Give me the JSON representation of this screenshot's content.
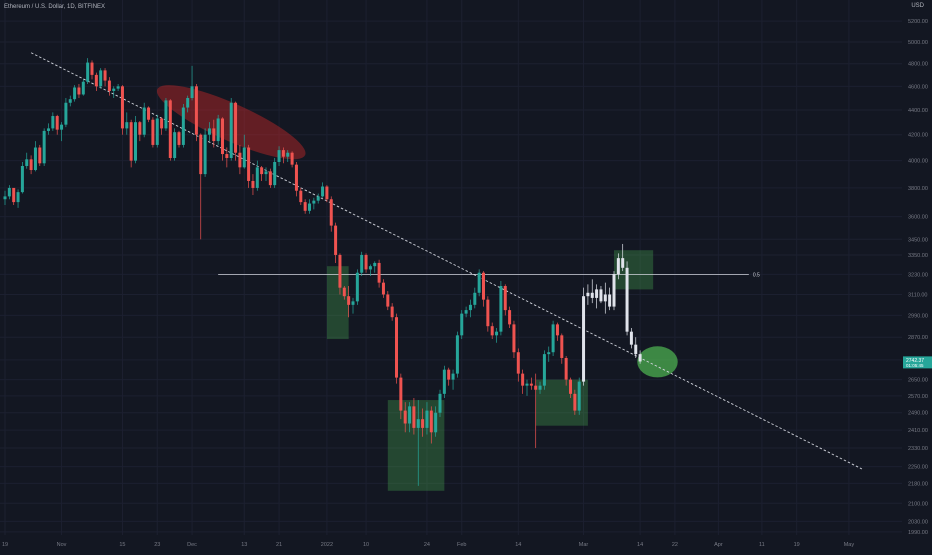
{
  "header": {
    "title": "Ethereum / U.S. Dollar, 1D, BITFINEX",
    "currency": "USD"
  },
  "colors": {
    "background": "#131722",
    "bull": "#26a69a",
    "bear": "#ef5350",
    "white_candle": "#e0e3eb",
    "axis_text": "#787b86",
    "grid": "#1c2030",
    "trendline": "#d1d4dc",
    "level_line": "#d1d4dc",
    "zone_green": "#4caf50",
    "zone_red": "#c62828"
  },
  "chart_data": {
    "type": "candlestick",
    "symbol": "Ethereum / U.S. Dollar",
    "interval": "1D",
    "exchange": "BITFINEX",
    "y_axis": {
      "scale": "log",
      "ticks": [
        "5200.00",
        "5000.00",
        "4800.00",
        "4600.00",
        "4400.00",
        "4200.00",
        "4000.00",
        "3800.00",
        "3600.00",
        "3450.00",
        "3350.00",
        "3230.00",
        "3110.00",
        "2990.00",
        "2870.00",
        "2750.00",
        "2650.00",
        "2570.00",
        "2490.00",
        "2410.00",
        "2330.00",
        "2250.00",
        "2180.00",
        "2100.00",
        "2030.00",
        "1990.00"
      ],
      "tick_values": [
        5200,
        5000,
        4800,
        4600,
        4400,
        4200,
        4000,
        3800,
        3600,
        3450,
        3350,
        3230,
        3110,
        2990,
        2870,
        2750,
        2650,
        2570,
        2490,
        2410,
        2330,
        2250,
        2180,
        2100,
        2030,
        1990
      ]
    },
    "x_axis": {
      "ticks": [
        {
          "label": "19",
          "day": 0
        },
        {
          "label": "Nov",
          "day": 13
        },
        {
          "label": "15",
          "day": 27
        },
        {
          "label": "23",
          "day": 35
        },
        {
          "label": "Dec",
          "day": 43
        },
        {
          "label": "13",
          "day": 55
        },
        {
          "label": "21",
          "day": 63
        },
        {
          "label": "2022",
          "day": 74
        },
        {
          "label": "10",
          "day": 83
        },
        {
          "label": "24",
          "day": 97
        },
        {
          "label": "Feb",
          "day": 105
        },
        {
          "label": "14",
          "day": 118
        },
        {
          "label": "Mar",
          "day": 133
        },
        {
          "label": "14",
          "day": 146
        },
        {
          "label": "22",
          "day": 154
        },
        {
          "label": "Apr",
          "day": 164
        },
        {
          "label": "11",
          "day": 174
        },
        {
          "label": "19",
          "day": 182
        },
        {
          "label": "May",
          "day": 194
        }
      ]
    },
    "price_label": {
      "price": "2742.37",
      "sub": "01:05:45"
    },
    "horizontal_line": {
      "price": 3230,
      "label": "0.5"
    },
    "trendline": {
      "points": [
        {
          "day": 6,
          "price": 4900
        },
        {
          "day": 197,
          "price": 2240
        }
      ]
    },
    "candles": [
      [
        3720,
        3780,
        3680,
        3740,
        "c"
      ],
      [
        3740,
        3820,
        3720,
        3800,
        "c"
      ],
      [
        3800,
        3790,
        3680,
        3700,
        "c"
      ],
      [
        3700,
        3790,
        3660,
        3770,
        "c"
      ],
      [
        3770,
        3990,
        3760,
        3960,
        "c"
      ],
      [
        3960,
        4060,
        3940,
        4010,
        "c"
      ],
      [
        4010,
        4040,
        3900,
        3930,
        "c"
      ],
      [
        3930,
        4150,
        3920,
        4100,
        "c"
      ],
      [
        4100,
        4120,
        3960,
        3980,
        "c"
      ],
      [
        3980,
        4250,
        3960,
        4230,
        "c"
      ],
      [
        4230,
        4290,
        4200,
        4250,
        "c"
      ],
      [
        4250,
        4380,
        4230,
        4350,
        "c"
      ],
      [
        4350,
        4360,
        4200,
        4240,
        "c"
      ],
      [
        4240,
        4300,
        4150,
        4280,
        "c"
      ],
      [
        4280,
        4500,
        4260,
        4460,
        "c"
      ],
      [
        4460,
        4520,
        4430,
        4490,
        "c"
      ],
      [
        4490,
        4610,
        4470,
        4590,
        "c"
      ],
      [
        4590,
        4620,
        4500,
        4530,
        "c"
      ],
      [
        4530,
        4660,
        4520,
        4640,
        "c"
      ],
      [
        4640,
        4850,
        4620,
        4810,
        "c"
      ],
      [
        4810,
        4830,
        4660,
        4700,
        "c"
      ],
      [
        4700,
        4720,
        4560,
        4600,
        "c"
      ],
      [
        4600,
        4760,
        4580,
        4740,
        "c"
      ],
      [
        4740,
        4760,
        4600,
        4650,
        "c"
      ],
      [
        4650,
        4680,
        4520,
        4560,
        "c"
      ],
      [
        4560,
        4600,
        4500,
        4580,
        "c"
      ],
      [
        4580,
        4620,
        4560,
        4600,
        "c"
      ],
      [
        4600,
        4610,
        4200,
        4250,
        "c"
      ],
      [
        4250,
        4380,
        4200,
        4300,
        "c"
      ],
      [
        4300,
        4320,
        3950,
        4000,
        "c"
      ],
      [
        4000,
        4350,
        3980,
        4300,
        "c"
      ],
      [
        4300,
        4310,
        4150,
        4200,
        "c"
      ],
      [
        4200,
        4460,
        4180,
        4420,
        "c"
      ],
      [
        4420,
        4430,
        4300,
        4320,
        "c"
      ],
      [
        4320,
        4340,
        4100,
        4120,
        "c"
      ],
      [
        4120,
        4360,
        4100,
        4330,
        "c"
      ],
      [
        4330,
        4340,
        4200,
        4250,
        "c"
      ],
      [
        4250,
        4500,
        4230,
        4480,
        "c"
      ],
      [
        4480,
        4490,
        4000,
        4020,
        "c"
      ],
      [
        4020,
        4250,
        4000,
        4220,
        "c"
      ],
      [
        4220,
        4230,
        4100,
        4120,
        "c"
      ],
      [
        4120,
        4450,
        4100,
        4420,
        "c"
      ],
      [
        4420,
        4520,
        4380,
        4500,
        "c"
      ],
      [
        4500,
        4780,
        4480,
        4600,
        "c"
      ],
      [
        4600,
        4620,
        4150,
        4200,
        "c"
      ],
      [
        4200,
        4210,
        3450,
        3900,
        "c"
      ],
      [
        3900,
        4250,
        3880,
        4200,
        "c"
      ],
      [
        4200,
        4300,
        4150,
        4250,
        "c"
      ],
      [
        4250,
        4320,
        4100,
        4150,
        "c"
      ],
      [
        4150,
        4360,
        4120,
        4330,
        "c"
      ],
      [
        4330,
        4340,
        4000,
        4050,
        "c"
      ],
      [
        4050,
        4100,
        3950,
        4020,
        "c"
      ],
      [
        4020,
        4500,
        4000,
        4460,
        "c"
      ],
      [
        4460,
        4470,
        4000,
        4060,
        "c"
      ],
      [
        4060,
        4120,
        3900,
        3950,
        "c"
      ],
      [
        3950,
        4200,
        3940,
        4100,
        "c"
      ],
      [
        4100,
        4120,
        3800,
        3850,
        "c"
      ],
      [
        3850,
        3900,
        3750,
        3800,
        "c"
      ],
      [
        3800,
        4000,
        3780,
        3950,
        "c"
      ],
      [
        3950,
        3960,
        3850,
        3900,
        "c"
      ],
      [
        3900,
        3950,
        3850,
        3920,
        "c"
      ],
      [
        3920,
        3940,
        3800,
        3820,
        "c"
      ],
      [
        3820,
        4020,
        3800,
        3990,
        "c"
      ],
      [
        3990,
        4110,
        3960,
        4080,
        "c"
      ],
      [
        4080,
        4100,
        3980,
        4030,
        "c"
      ],
      [
        4030,
        4080,
        3990,
        4060,
        "c"
      ],
      [
        4060,
        4070,
        3950,
        3970,
        "c"
      ],
      [
        3970,
        3990,
        3740,
        3780,
        "c"
      ],
      [
        3780,
        3800,
        3680,
        3700,
        "c"
      ],
      [
        3700,
        3720,
        3620,
        3640,
        "c"
      ],
      [
        3640,
        3720,
        3620,
        3690,
        "c"
      ],
      [
        3690,
        3730,
        3650,
        3710,
        "c"
      ],
      [
        3710,
        3760,
        3690,
        3740,
        "c"
      ],
      [
        3740,
        3840,
        3730,
        3810,
        "c"
      ],
      [
        3810,
        3820,
        3700,
        3720,
        "c"
      ],
      [
        3720,
        3740,
        3500,
        3540,
        "c"
      ],
      [
        3540,
        3560,
        3300,
        3350,
        "c"
      ],
      [
        3350,
        3360,
        3110,
        3150,
        "c"
      ],
      [
        3150,
        3160,
        3080,
        3100,
        "c"
      ],
      [
        3100,
        3160,
        2980,
        3050,
        "c"
      ],
      [
        3050,
        3090,
        3000,
        3070,
        "c"
      ],
      [
        3070,
        3260,
        3050,
        3240,
        "c"
      ],
      [
        3240,
        3370,
        3220,
        3350,
        "c"
      ],
      [
        3350,
        3360,
        3240,
        3260,
        "c"
      ],
      [
        3260,
        3290,
        3220,
        3280,
        "c"
      ],
      [
        3280,
        3310,
        3240,
        3300,
        "c"
      ],
      [
        3300,
        3320,
        3150,
        3180,
        "c"
      ],
      [
        3180,
        3200,
        3090,
        3110,
        "c"
      ],
      [
        3110,
        3130,
        3020,
        3040,
        "c"
      ],
      [
        3040,
        3060,
        2960,
        2980,
        "c"
      ],
      [
        2980,
        3000,
        2630,
        2660,
        "c"
      ],
      [
        2660,
        2680,
        2460,
        2500,
        "c"
      ],
      [
        2500,
        2540,
        2400,
        2440,
        "c"
      ],
      [
        2440,
        2540,
        2400,
        2520,
        "c"
      ],
      [
        2520,
        2560,
        2390,
        2420,
        "c"
      ],
      [
        2420,
        2550,
        2170,
        2460,
        "c"
      ],
      [
        2460,
        2510,
        2380,
        2420,
        "c"
      ],
      [
        2420,
        2540,
        2390,
        2500,
        "c"
      ],
      [
        2500,
        2520,
        2350,
        2400,
        "c"
      ],
      [
        2400,
        2520,
        2380,
        2490,
        "c"
      ],
      [
        2490,
        2600,
        2470,
        2580,
        "c"
      ],
      [
        2580,
        2720,
        2560,
        2700,
        "c"
      ],
      [
        2700,
        2710,
        2620,
        2650,
        "c"
      ],
      [
        2650,
        2700,
        2600,
        2680,
        "c"
      ],
      [
        2680,
        2900,
        2660,
        2880,
        "c"
      ],
      [
        2880,
        3020,
        2860,
        3000,
        "c"
      ],
      [
        3000,
        3040,
        2980,
        3020,
        "c"
      ],
      [
        3020,
        3080,
        2980,
        3050,
        "c"
      ],
      [
        3050,
        3150,
        3030,
        3120,
        "c"
      ],
      [
        3120,
        3260,
        3100,
        3240,
        "c"
      ],
      [
        3240,
        3250,
        3040,
        3080,
        "c"
      ],
      [
        3080,
        3100,
        2900,
        2930,
        "c"
      ],
      [
        2930,
        2950,
        2860,
        2880,
        "c"
      ],
      [
        2880,
        2920,
        2840,
        2900,
        "c"
      ],
      [
        2900,
        3190,
        2880,
        3160,
        "c"
      ],
      [
        3160,
        3170,
        2990,
        3020,
        "c"
      ],
      [
        3020,
        3040,
        2920,
        2940,
        "c"
      ],
      [
        2940,
        2960,
        2760,
        2790,
        "c"
      ],
      [
        2790,
        2810,
        2640,
        2680,
        "c"
      ],
      [
        2680,
        2700,
        2580,
        2620,
        "c"
      ],
      [
        2620,
        2650,
        2570,
        2630,
        "c"
      ],
      [
        2630,
        2660,
        2600,
        2620,
        "c"
      ],
      [
        2620,
        2680,
        2330,
        2600,
        "c"
      ],
      [
        2600,
        2640,
        2580,
        2620,
        "c"
      ],
      [
        2620,
        2800,
        2600,
        2780,
        "c"
      ],
      [
        2780,
        2820,
        2740,
        2790,
        "c"
      ],
      [
        2790,
        2960,
        2770,
        2940,
        "c"
      ],
      [
        2940,
        2950,
        2850,
        2880,
        "c"
      ],
      [
        2880,
        2890,
        2730,
        2760,
        "c"
      ],
      [
        2760,
        2770,
        2620,
        2650,
        "c"
      ],
      [
        2650,
        2660,
        2560,
        2580,
        "c"
      ],
      [
        2580,
        2600,
        2480,
        2500,
        "c"
      ],
      [
        2500,
        2660,
        2480,
        2640,
        "c"
      ],
      [
        2640,
        3150,
        2620,
        3100,
        "w"
      ],
      [
        3100,
        3170,
        3050,
        3120,
        "w"
      ],
      [
        3120,
        3200,
        3060,
        3090,
        "w"
      ],
      [
        3090,
        3170,
        3030,
        3140,
        "w"
      ],
      [
        3140,
        3160,
        3060,
        3070,
        "w"
      ],
      [
        3070,
        3180,
        3000,
        3110,
        "w"
      ],
      [
        3110,
        3150,
        3020,
        3040,
        "w"
      ],
      [
        3040,
        3250,
        3020,
        3230,
        "w"
      ],
      [
        3230,
        3360,
        3200,
        3330,
        "w"
      ],
      [
        3330,
        3420,
        3250,
        3270,
        "w"
      ],
      [
        3270,
        3310,
        2880,
        2900,
        "w"
      ],
      [
        2900,
        2920,
        2810,
        2830,
        "w"
      ],
      [
        2830,
        2870,
        2760,
        2780,
        "w"
      ],
      [
        2780,
        2800,
        2730,
        2742,
        "w"
      ]
    ],
    "zones": [
      {
        "shape": "rect",
        "color": "green",
        "day1": 74,
        "day2": 79,
        "price1": 3280,
        "price2": 2860
      },
      {
        "shape": "rect",
        "color": "green",
        "day1": 88,
        "day2": 101,
        "price1": 2550,
        "price2": 2150
      },
      {
        "shape": "rect",
        "color": "green",
        "day1": 122,
        "day2": 134,
        "price1": 2650,
        "price2": 2430
      },
      {
        "shape": "rect",
        "color": "green",
        "day1": 140,
        "day2": 149,
        "price1": 3380,
        "price2": 3140
      },
      {
        "shape": "ellipse",
        "color": "red",
        "cx": 52,
        "cy": 4300,
        "rx_days": 12,
        "ry_price": 150,
        "rotate": 24
      },
      {
        "shape": "ellipse",
        "color": "green",
        "cx": 150,
        "cy": 2740,
        "rx_days": 3,
        "ry_price": 80,
        "rotate": 0
      }
    ]
  }
}
